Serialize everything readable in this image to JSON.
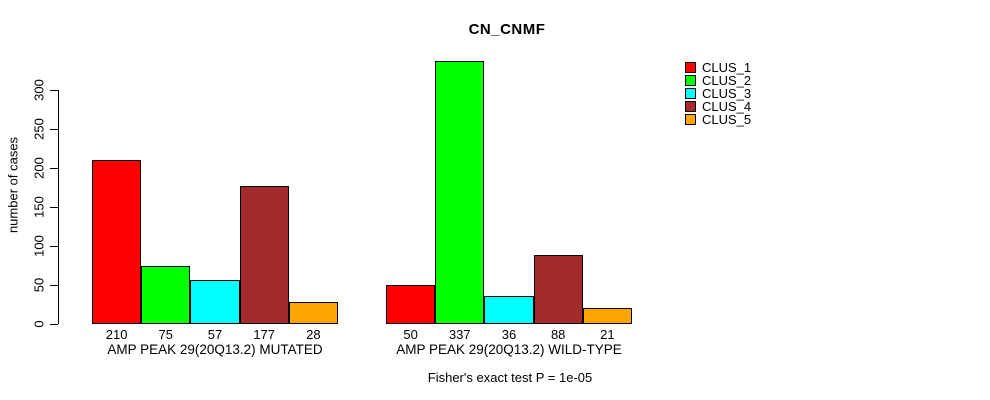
{
  "chart_data": {
    "type": "bar",
    "title": "CN_CNMF",
    "xlabel": "",
    "ylabel": "number of cases",
    "ylim": [
      0,
      340
    ],
    "yticks": [
      0,
      50,
      100,
      150,
      200,
      250,
      300
    ],
    "grid": false,
    "legend_position": "top-right",
    "series": [
      {
        "name": "CLUS_1",
        "color": "#FF0000"
      },
      {
        "name": "CLUS_2",
        "color": "#00FF00"
      },
      {
        "name": "CLUS_3",
        "color": "#00FFFF"
      },
      {
        "name": "CLUS_4",
        "color": "#A52A2A"
      },
      {
        "name": "CLUS_5",
        "color": "#FFA500"
      }
    ],
    "groups": [
      {
        "label": "AMP PEAK 29(20Q13.2) MUTATED",
        "values": [
          210,
          75,
          57,
          177,
          28
        ]
      },
      {
        "label": "AMP PEAK 29(20Q13.2) WILD-TYPE",
        "values": [
          50,
          337,
          36,
          88,
          21
        ]
      }
    ],
    "annotation": "Fisher's exact test P = 1e-05"
  }
}
